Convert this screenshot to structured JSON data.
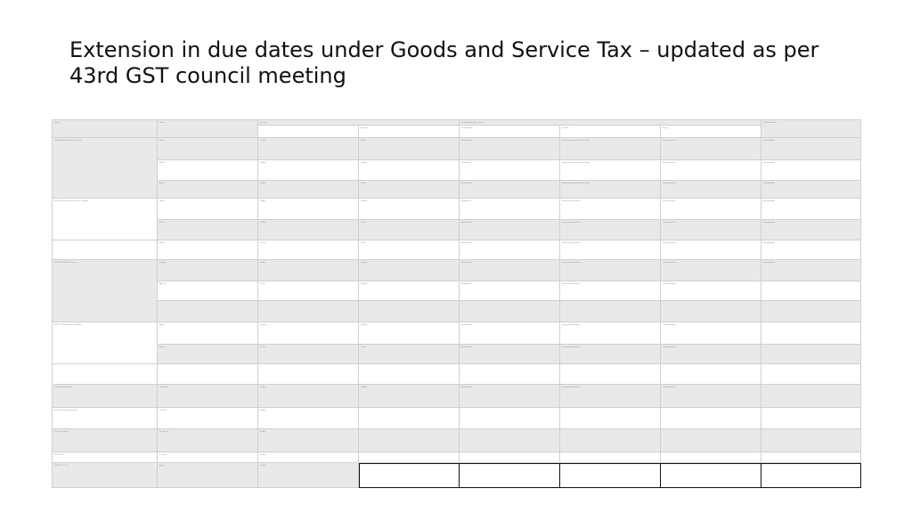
{
  "slide": {
    "title": "Extension in due dates under Goods and Service Tax – updated as per 43rd GST council meeting"
  },
  "table": {
    "headers": [
      "Return",
      "Period",
      "Due date",
      "",
      "Extended due date / remarks",
      "",
      "",
      "Original due date"
    ],
    "subheaders": [
      "",
      "",
      "",
      "Due date",
      "Extended date",
      "Late fee",
      "Interest",
      ""
    ],
    "rows": [
      [
        "GSTR-3B (turnover above 5 crore)",
        "Feb-21",
        "20-Mar",
        "20-Apr",
        "Extended till",
        "Interest at reduced rate for 15 days",
        "Late fee waived",
        "Not applicable"
      ],
      [
        "",
        "Mar-21",
        "20-Apr",
        "20-May",
        "Extended till",
        "Interest at reduced rate for 15 days",
        "Late fee waived",
        "Not applicable"
      ],
      [
        "",
        "Apr-21",
        "20-May",
        "04-Jun",
        "Extended till",
        "Interest at reduced rate for 15 days",
        "Late fee waived",
        "Not applicable"
      ],
      [
        "GSTR-3B (turnover up to 5 crore, monthly)",
        "Mar-21",
        "20-Apr",
        "20-May",
        "Extended till",
        "Interest at reduced rate",
        "Late fee waived",
        "Not applicable"
      ],
      [
        "",
        "Apr-21",
        "20-May",
        "20-Jun",
        "Extended till",
        "Interest at reduced rate",
        "Late fee waived",
        "Not applicable"
      ],
      [
        "",
        "May-21",
        "20-Jun",
        "05-Jul",
        "Extended till",
        "Interest at reduced rate",
        "Late fee waived",
        "Not applicable"
      ],
      [
        "GSTR-3B (QRMP scheme)",
        "Jan-Mar",
        "22-Apr",
        "22-May",
        "Extended till",
        "Interest at reduced rate",
        "Late fee waived",
        "Not applicable"
      ],
      [
        "",
        "Apr-Jun",
        "22-Jul",
        "06-Aug",
        "Extended till",
        "Interest at reduced rate",
        "Late fee waived",
        "—"
      ],
      [
        "",
        "—",
        "—",
        "—",
        "—",
        "—",
        "—",
        "—"
      ],
      [
        "GSTR-1 / IFF (monthly / quarterly)",
        "Apr-21",
        "11-May",
        "26-May",
        "Extended till",
        "Interest not applicable",
        "Late fee waived",
        "—"
      ],
      [
        "",
        "May-21",
        "11-Jun",
        "26-Jun",
        "Extended till",
        "Interest not applicable",
        "Late fee waived",
        "—"
      ],
      [
        "",
        "—",
        "—",
        "—",
        "—",
        "—",
        "—",
        "—"
      ],
      [
        "CMP-08 (composition)",
        "Jan-Mar 21",
        "18-Apr",
        "18-May",
        "Extended till",
        "Interest not applicable",
        "Late fee waived",
        "—"
      ],
      [
        "GSTR-4 (composition annual)",
        "FY 20-21",
        "30-Apr",
        "",
        "",
        "",
        "",
        "—"
      ],
      [
        "ITC-04 (job work)",
        "Jan-Mar 21",
        "25-Apr",
        "",
        "",
        "",
        "",
        "—"
      ],
      [
        "GSTR-9 / 9C",
        "FY 19-20",
        "31-Mar",
        "",
        "",
        "",
        "",
        "—"
      ],
      [
        "GSTR-5 / 6 / 7 / 8",
        "Apr-21",
        "10-May",
        "",
        "",
        "",
        "",
        ""
      ]
    ]
  }
}
